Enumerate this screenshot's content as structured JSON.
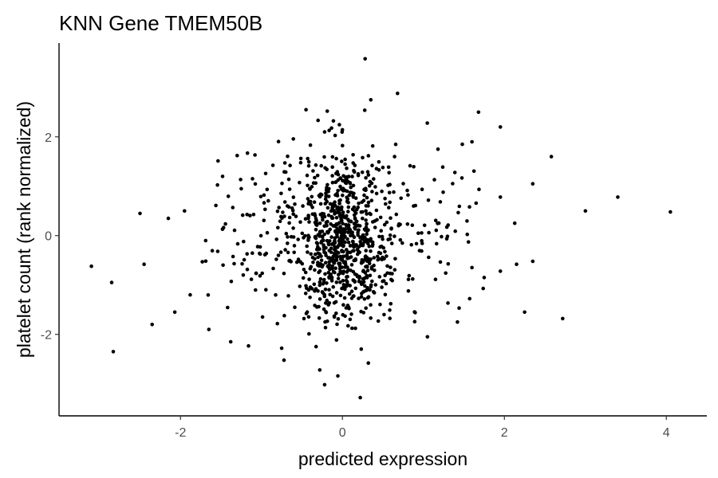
{
  "chart_data": {
    "type": "scatter",
    "title": "KNN Gene TMEM50B",
    "xlabel": "predicted expression",
    "ylabel": "platelet count (rank normalized)",
    "xlim": [
      -3.5,
      4.5
    ],
    "ylim": [
      -3.65,
      3.9
    ],
    "x_ticks": [
      -2,
      0,
      2,
      4
    ],
    "x_tick_labels": [
      "-2",
      "0",
      "2",
      "4"
    ],
    "y_ticks": [
      -2,
      0,
      2
    ],
    "y_tick_labels": [
      "-2",
      "0",
      "2"
    ],
    "grid": false,
    "legend": "none",
    "point_color": "#000000",
    "sample_points": [
      {
        "x": 0.28,
        "y": 3.58
      },
      {
        "x": 0.68,
        "y": 2.88
      },
      {
        "x": 0.35,
        "y": 2.75
      },
      {
        "x": -0.45,
        "y": 2.55
      },
      {
        "x": 1.68,
        "y": 2.5
      },
      {
        "x": -0.22,
        "y": 2.1
      },
      {
        "x": 1.95,
        "y": 2.2
      },
      {
        "x": 1.48,
        "y": 1.85
      },
      {
        "x": 1.6,
        "y": 1.9
      },
      {
        "x": 1.18,
        "y": 1.75
      },
      {
        "x": -1.3,
        "y": 1.62
      },
      {
        "x": 2.58,
        "y": 1.6
      },
      {
        "x": -1.48,
        "y": 1.2
      },
      {
        "x": -1.25,
        "y": 0.95
      },
      {
        "x": 1.95,
        "y": 0.78
      },
      {
        "x": 2.35,
        "y": 1.05
      },
      {
        "x": 3.4,
        "y": 0.78
      },
      {
        "x": 4.05,
        "y": 0.48
      },
      {
        "x": 3.0,
        "y": 0.5
      },
      {
        "x": -2.5,
        "y": 0.45
      },
      {
        "x": -2.15,
        "y": 0.35
      },
      {
        "x": -1.95,
        "y": 0.5
      },
      {
        "x": -3.1,
        "y": -0.62
      },
      {
        "x": -2.45,
        "y": -0.58
      },
      {
        "x": -2.85,
        "y": -0.95
      },
      {
        "x": -1.88,
        "y": -1.2
      },
      {
        "x": -2.07,
        "y": -1.55
      },
      {
        "x": -2.35,
        "y": -1.8
      },
      {
        "x": -2.83,
        "y": -2.35
      },
      {
        "x": -1.38,
        "y": -2.15
      },
      {
        "x": -1.65,
        "y": -1.9
      },
      {
        "x": 0.22,
        "y": -3.28
      },
      {
        "x": -0.22,
        "y": -3.02
      },
      {
        "x": -0.28,
        "y": -2.72
      },
      {
        "x": 0.32,
        "y": -2.58
      },
      {
        "x": -0.75,
        "y": -2.28
      },
      {
        "x": 1.05,
        "y": -2.05
      },
      {
        "x": 2.25,
        "y": -1.55
      },
      {
        "x": 2.72,
        "y": -1.68
      },
      {
        "x": 1.75,
        "y": -0.85
      },
      {
        "x": 1.95,
        "y": -0.72
      },
      {
        "x": 2.15,
        "y": -0.58
      },
      {
        "x": 2.35,
        "y": -0.52
      },
      {
        "x": 1.42,
        "y": -1.75
      },
      {
        "x": 0.0,
        "y": 0.05
      },
      {
        "x": 0.1,
        "y": 0.0
      },
      {
        "x": -0.05,
        "y": -0.35
      },
      {
        "x": 0.05,
        "y": 0.4
      }
    ]
  }
}
